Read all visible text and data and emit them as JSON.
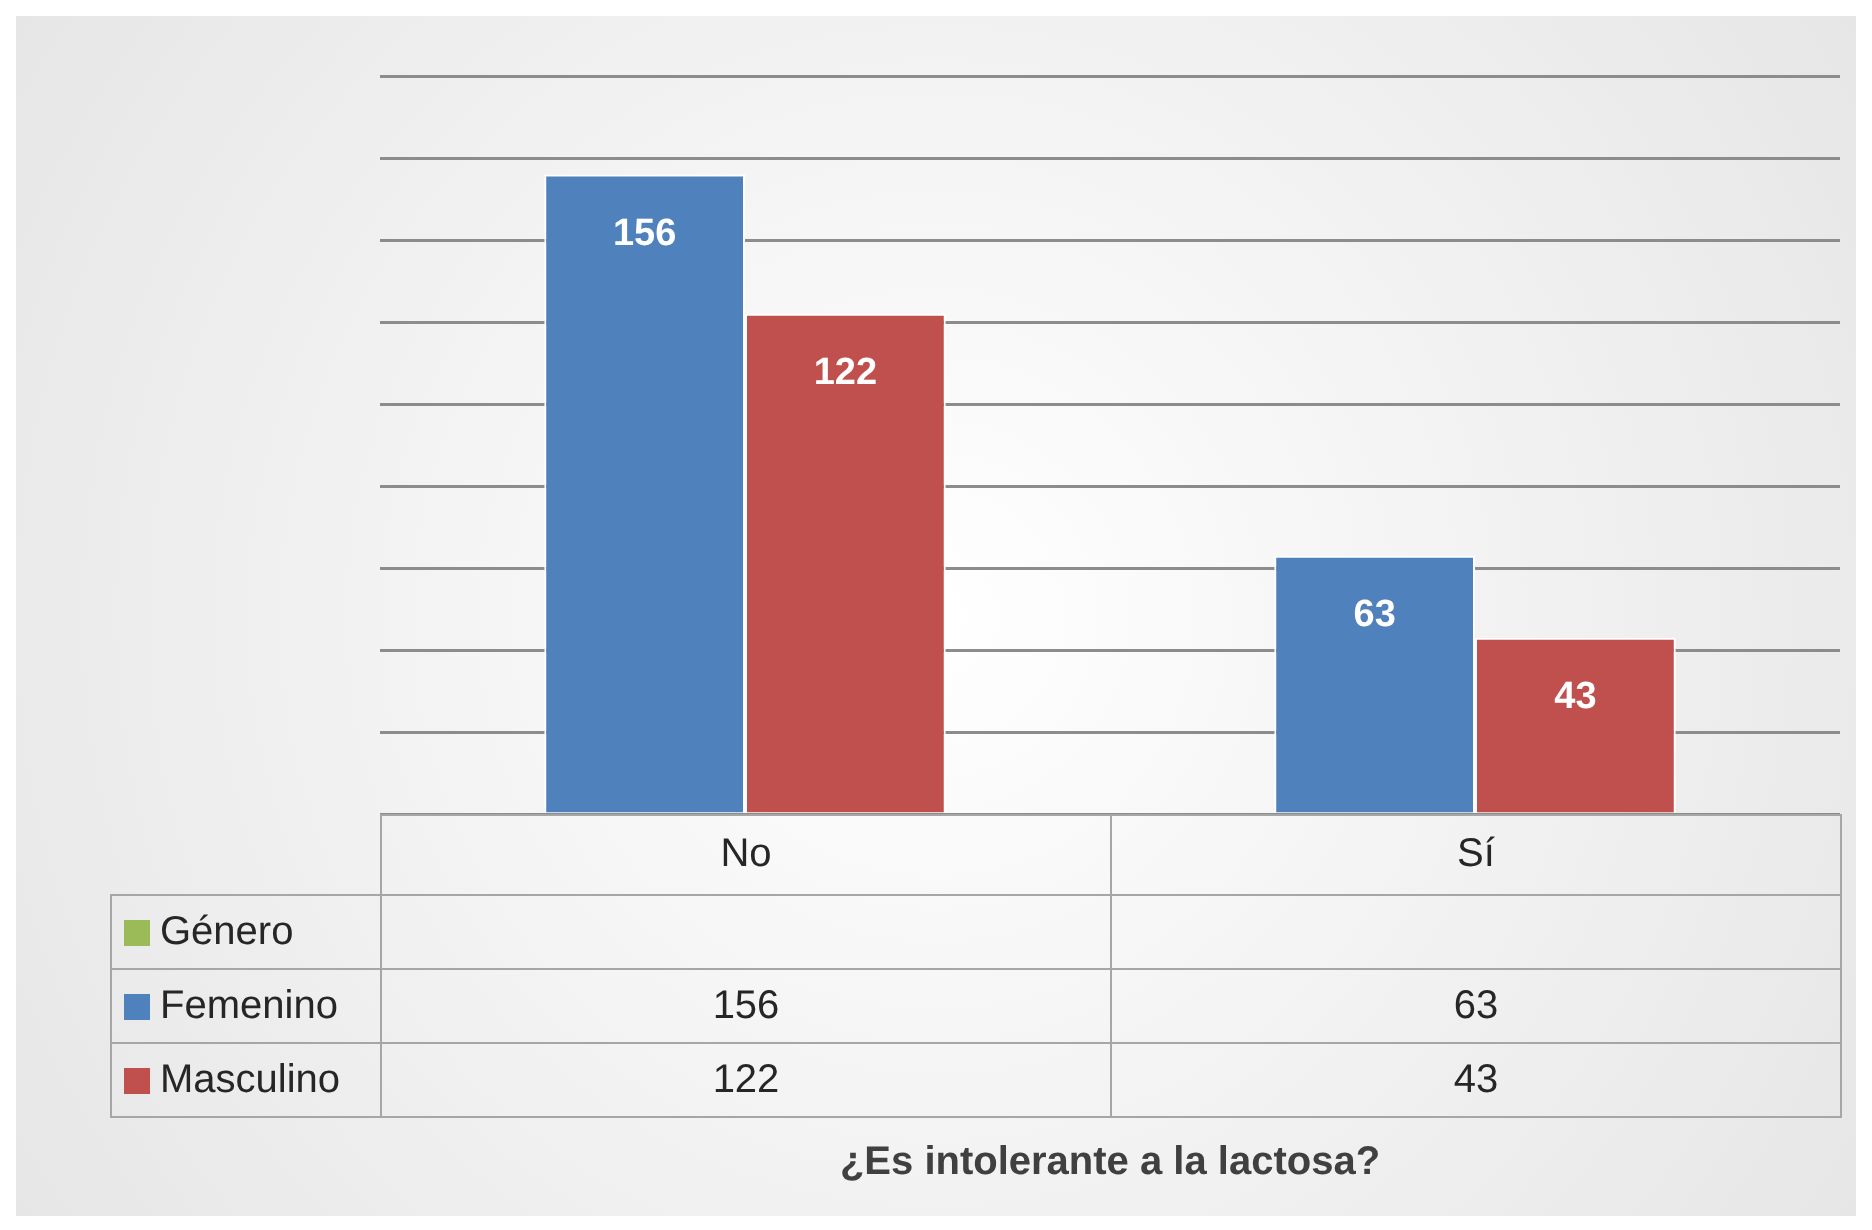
{
  "chart_data": {
    "type": "bar",
    "annotations": [
      "¿Es intolerante a la lactosa?",
      {
        "text": "156",
        "x": "No",
        "y": 156
      },
      {
        "text": "63",
        "x": "Sí",
        "y": 63
      },
      {
        "text": "122",
        "x": "No",
        "y": 122
      },
      {
        "text": "43",
        "x": "Sí",
        "y": 43
      }
    ],
    "categories": [
      "No",
      "Sí"
    ],
    "series": [
      {
        "name": "Género",
        "color": "#9bbb59",
        "values": [
          null,
          null
        ]
      },
      {
        "name": "Femenino",
        "color": "#4f81bd",
        "values": [
          156,
          63
        ]
      },
      {
        "name": "Masculino",
        "color": "#c0504d",
        "values": [
          122,
          43
        ]
      }
    ],
    "ylim": [
      0,
      180
    ],
    "yticks": [
      {
        "value": 0,
        "label": null
      },
      {
        "value": 20,
        "label": null
      },
      {
        "value": 40,
        "label": null
      },
      {
        "value": 60,
        "label": null
      },
      {
        "value": 80,
        "label": null
      },
      {
        "value": 100,
        "label": null
      },
      {
        "value": 120,
        "label": null
      },
      {
        "value": 140,
        "label": null
      },
      {
        "value": 160,
        "label": null
      },
      {
        "value": 180,
        "label": null
      }
    ],
    "grid": "y",
    "legend": "bottom",
    "data_labels": true
  }
}
